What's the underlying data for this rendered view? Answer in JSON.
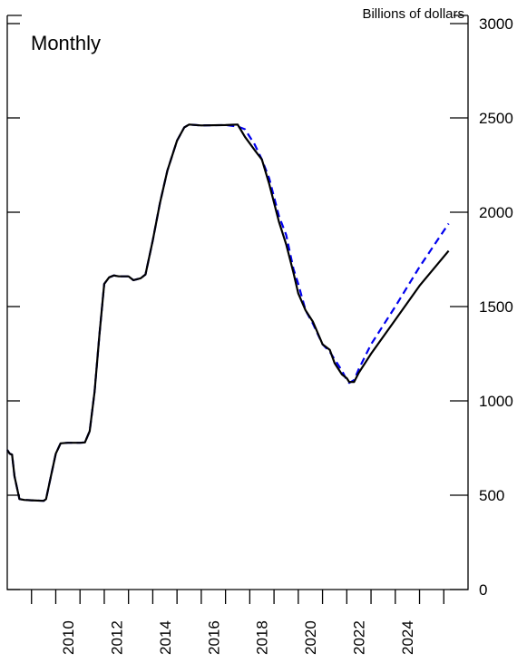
{
  "chart_data": {
    "type": "line",
    "annotation": "Monthly",
    "y_axis_label": "Billions of dollars",
    "x": [
      2008.0,
      2008.1,
      2008.2,
      2008.3,
      2008.5,
      2008.7,
      2009.0,
      2009.5,
      2009.6,
      2009.8,
      2010.0,
      2010.2,
      2010.5,
      2011.0,
      2011.2,
      2011.4,
      2011.6,
      2011.8,
      2012.0,
      2012.2,
      2012.4,
      2012.6,
      2013.0,
      2013.2,
      2013.5,
      2013.7,
      2014.0,
      2014.3,
      2014.6,
      2015.0,
      2015.3,
      2015.5,
      2016.0,
      2017.0,
      2017.5,
      2017.8,
      2018.2,
      2018.5,
      2018.8,
      2019.2,
      2019.5,
      2019.8,
      2020.0,
      2020.3,
      2020.6,
      2021.0,
      2021.3,
      2021.5,
      2021.8,
      2022.0,
      2022.1,
      2022.3,
      2022.5,
      2023.0,
      2024.0,
      2025.0,
      2026.2
    ],
    "series": [
      {
        "color": "#000000",
        "dash": false,
        "values": [
          740,
          720,
          715,
          600,
          480,
          475,
          473,
          470,
          480,
          600,
          720,
          775,
          778,
          778,
          780,
          840,
          1050,
          1350,
          1620,
          1655,
          1665,
          1660,
          1660,
          1640,
          1650,
          1670,
          1850,
          2050,
          2220,
          2380,
          2450,
          2465,
          2460,
          2462,
          2465,
          2400,
          2330,
          2280,
          2150,
          1950,
          1830,
          1680,
          1570,
          1480,
          1420,
          1300,
          1270,
          1200,
          1140,
          1120,
          1100,
          1100,
          1150,
          1250,
          1430,
          1610,
          1795
        ]
      },
      {
        "color": "#0000ee",
        "dash": true,
        "values": [
          740,
          720,
          715,
          600,
          480,
          475,
          473,
          470,
          480,
          600,
          720,
          775,
          778,
          778,
          780,
          840,
          1050,
          1350,
          1620,
          1655,
          1665,
          1660,
          1660,
          1640,
          1650,
          1670,
          1850,
          2050,
          2220,
          2380,
          2450,
          2465,
          2460,
          2462,
          2455,
          2440,
          2360,
          2280,
          2180,
          1980,
          1880,
          1700,
          1620,
          1480,
          1410,
          1300,
          1260,
          1220,
          1160,
          1110,
          1095,
          1110,
          1170,
          1300,
          1500,
          1710,
          1940
        ]
      }
    ],
    "xlim": [
      2008,
      2027
    ],
    "xticks": [
      2009,
      2010,
      2011,
      2012,
      2013,
      2014,
      2015,
      2016,
      2017,
      2018,
      2019,
      2020,
      2021,
      2022,
      2023,
      2024,
      2025,
      2026
    ],
    "xticklabels": [
      2010,
      2012,
      2014,
      2016,
      2018,
      2020,
      2022,
      2024
    ],
    "ylim": [
      0,
      3000
    ],
    "yticks": [
      0,
      500,
      1000,
      1500,
      2000,
      2500,
      3000
    ]
  }
}
